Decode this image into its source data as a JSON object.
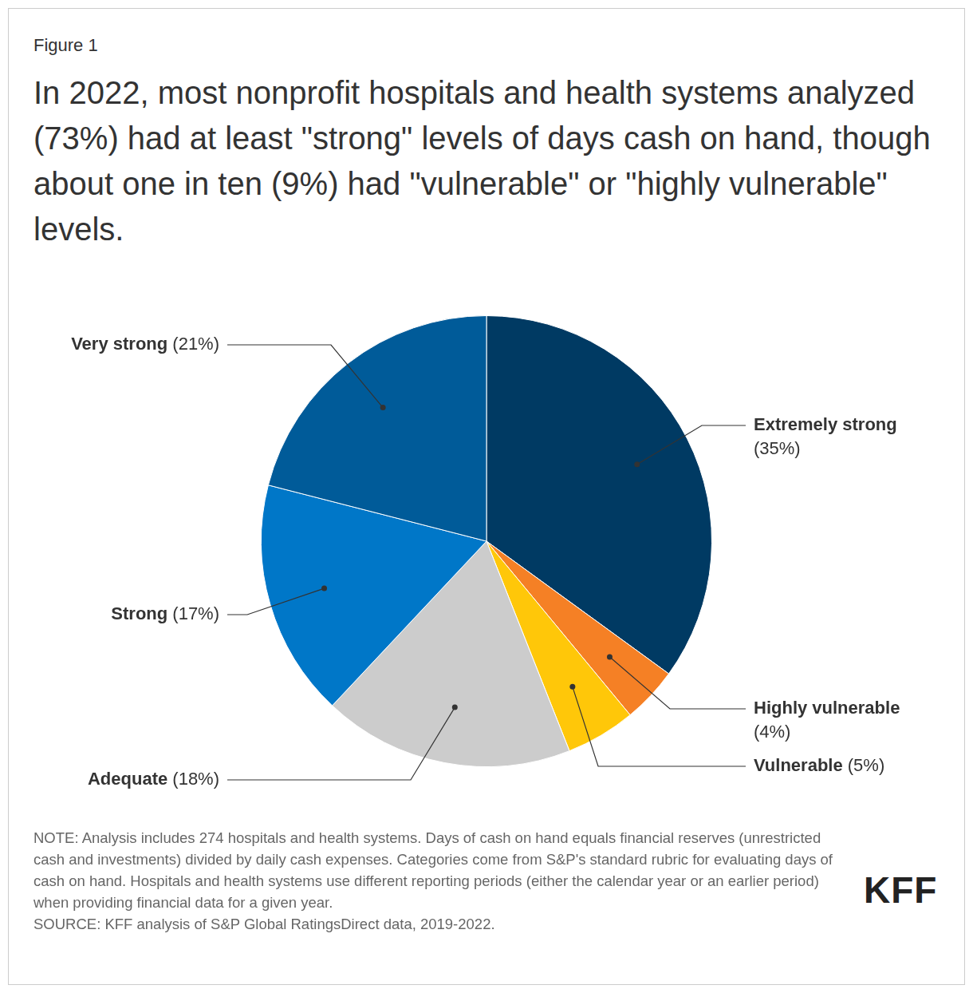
{
  "chart_data": {
    "type": "pie",
    "figure_label": "Figure 1",
    "title": "In 2022, most nonprofit hospitals and health systems analyzed (73%) had at least \"strong\" levels of days cash on hand, though about one in ten (9%) had \"vulnerable\" or \"highly vulnerable\" levels.",
    "categories": [
      "Extremely strong",
      "Highly vulnerable",
      "Vulnerable",
      "Adequate",
      "Strong",
      "Very strong"
    ],
    "values": [
      35,
      4,
      5,
      18,
      17,
      21
    ],
    "value_labels": [
      "(35%)",
      "(4%)",
      "(5%)",
      "(18%)",
      "(17%)",
      "(21%)"
    ],
    "colors": [
      "#003a63",
      "#f58025",
      "#ffc709",
      "#cccccc",
      "#0077c8",
      "#005b99"
    ],
    "data_labels": true,
    "note": "NOTE: Analysis includes 274 hospitals and health systems. Days of cash on hand equals financial reserves (unrestricted cash and investments) divided by daily cash expenses. Categories come from S&P's standard rubric for evaluating days of cash on hand. Hospitals and health systems use different reporting periods (either the calendar year or an earlier period) when providing financial data for a given year.",
    "source": "SOURCE: KFF analysis of S&P Global RatingsDirect data, 2019-2022.",
    "logo": "KFF"
  }
}
